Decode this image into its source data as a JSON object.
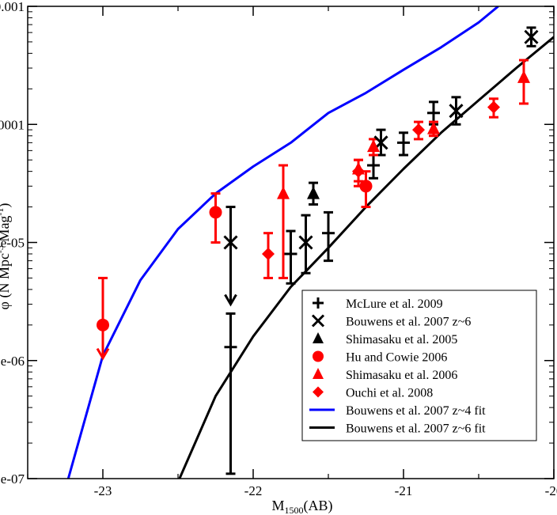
{
  "chart_data": {
    "type": "scatter",
    "xlabel_main": "M",
    "xlabel_sub": "1500",
    "xlabel_tail": "(AB)",
    "ylabel_main": "φ (N Mpc",
    "ylabel_sup1": "-3",
    "ylabel_mid": " Mag",
    "ylabel_sup2": "-1",
    "ylabel_tail": ")",
    "xlim": [
      -23.5,
      -20
    ],
    "ylim": [
      1e-07,
      0.001
    ],
    "yscale": "log",
    "x_ticks": [
      {
        "value": -23,
        "label": "-23"
      },
      {
        "value": -22,
        "label": "-22"
      },
      {
        "value": -21,
        "label": "-21"
      },
      {
        "value": -20,
        "label": "-20"
      }
    ],
    "y_ticks": [
      {
        "value": 1e-07,
        "label": "1e-07"
      },
      {
        "value": 1e-06,
        "label": "1e-06"
      },
      {
        "value": 1e-05,
        "label": "1e-05"
      },
      {
        "value": 0.0001,
        "label": "0.0001"
      },
      {
        "value": 0.001,
        "label": "0.001"
      }
    ],
    "colors": {
      "red": "#ff0000",
      "black": "#000000",
      "blue": "#0000ff"
    },
    "series": [
      {
        "name": "McLure et al. 2009",
        "marker": "plus",
        "color": "#000000",
        "points": [
          {
            "x": -22.15,
            "y": 1.3e-06,
            "lo": 1.1e-07,
            "hi": 2.5e-06
          },
          {
            "x": -21.75,
            "y": 8e-06,
            "lo": 4.5e-06,
            "hi": 1.25e-05
          },
          {
            "x": -21.5,
            "y": 1.2e-05,
            "lo": 7e-06,
            "hi": 1.8e-05
          },
          {
            "x": -21.2,
            "y": 4.5e-05,
            "lo": 3.5e-05,
            "hi": 5.5e-05
          },
          {
            "x": -21.0,
            "y": 7e-05,
            "lo": 5.5e-05,
            "hi": 8.5e-05
          },
          {
            "x": -20.8,
            "y": 0.000125,
            "lo": 0.0001,
            "hi": 0.000155
          }
        ]
      },
      {
        "name": "Bouwens et al. 2007 z~6",
        "marker": "cross",
        "color": "#000000",
        "points": [
          {
            "x": -22.15,
            "y": 1e-05,
            "lo": null,
            "hi": 2e-05,
            "upper_limit": true,
            "arrow_to": 3e-06
          },
          {
            "x": -21.65,
            "y": 1e-05,
            "lo": 5.5e-06,
            "hi": 1.7e-05
          },
          {
            "x": -21.15,
            "y": 7e-05,
            "lo": 5.5e-05,
            "hi": 9e-05
          },
          {
            "x": -20.65,
            "y": 0.00013,
            "lo": 0.0001,
            "hi": 0.00017
          },
          {
            "x": -20.15,
            "y": 0.00055,
            "lo": 0.00046,
            "hi": 0.00066
          }
        ]
      },
      {
        "name": "Shimasaku et al. 2005",
        "marker": "triangle",
        "color": "#000000",
        "points": [
          {
            "x": -21.6,
            "y": 2.6e-05,
            "lo": 2.1e-05,
            "hi": 3.2e-05
          }
        ]
      },
      {
        "name": "Hu and Cowie 2006",
        "marker": "circle",
        "color": "#ff0000",
        "points": [
          {
            "x": -23.0,
            "y": 2e-06,
            "lo": null,
            "hi": 5e-06,
            "upper_limit": true,
            "arrow_to": 1.05e-06
          },
          {
            "x": -22.25,
            "y": 1.8e-05,
            "lo": 1e-05,
            "hi": 2.6e-05
          },
          {
            "x": -21.25,
            "y": 3e-05,
            "lo": 2e-05,
            "hi": 4e-05
          }
        ]
      },
      {
        "name": "Shimasaku et al. 2006",
        "marker": "triangle",
        "color": "#ff0000",
        "points": [
          {
            "x": -21.8,
            "y": 2.6e-05,
            "lo": 5e-06,
            "hi": 4.5e-05
          },
          {
            "x": -21.3,
            "y": 4.2e-05,
            "lo": 3.3e-05,
            "hi": 5e-05
          },
          {
            "x": -21.2,
            "y": 6.5e-05,
            "lo": 5.5e-05,
            "hi": 7.5e-05
          },
          {
            "x": -20.8,
            "y": 9.2e-05,
            "lo": 8e-05,
            "hi": 0.000105
          },
          {
            "x": -20.2,
            "y": 0.00025,
            "lo": 0.00015,
            "hi": 0.00035
          }
        ]
      },
      {
        "name": "Ouchi et al. 2008",
        "marker": "diamond",
        "color": "#ff0000",
        "points": [
          {
            "x": -21.9,
            "y": 8e-06,
            "lo": 5e-06,
            "hi": 1.2e-05
          },
          {
            "x": -21.3,
            "y": 4e-05,
            "lo": 3e-05,
            "hi": 5e-05
          },
          {
            "x": -20.9,
            "y": 9e-05,
            "lo": 7.5e-05,
            "hi": 0.000105
          },
          {
            "x": -20.4,
            "y": 0.00014,
            "lo": 0.000115,
            "hi": 0.000165
          }
        ]
      }
    ],
    "lines": [
      {
        "name": "Bouwens et al. 2007 z~4 fit",
        "color": "#0000ff",
        "x": [
          -23.23,
          -23.0,
          -22.75,
          -22.5,
          -22.25,
          -22.0,
          -21.75,
          -21.5,
          -21.25,
          -21.0,
          -20.75,
          -20.5,
          -20.37
        ],
        "y": [
          1e-07,
          1.1e-06,
          4.8e-06,
          1.3e-05,
          2.6e-05,
          4.4e-05,
          7e-05,
          0.000125,
          0.000185,
          0.00029,
          0.00045,
          0.00073,
          0.001
        ]
      },
      {
        "name": "Bouwens et al. 2007 z~6 fit",
        "color": "#000000",
        "x": [
          -22.49,
          -22.25,
          -22.0,
          -21.75,
          -21.5,
          -21.25,
          -21.0,
          -20.75,
          -20.5,
          -20.25,
          -20.0
        ],
        "y": [
          1e-07,
          5e-07,
          1.6e-06,
          4.2e-06,
          9e-06,
          2e-05,
          4.2e-05,
          8.5e-05,
          0.00016,
          0.0003,
          0.00055
        ]
      }
    ]
  }
}
